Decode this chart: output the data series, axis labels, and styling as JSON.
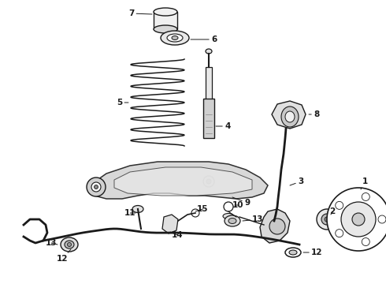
{
  "bg_color": "#ffffff",
  "line_color": "#1a1a1a",
  "figsize": [
    4.9,
    3.6
  ],
  "dpi": 100,
  "xlim": [
    0,
    490
  ],
  "ylim": [
    0,
    360
  ]
}
